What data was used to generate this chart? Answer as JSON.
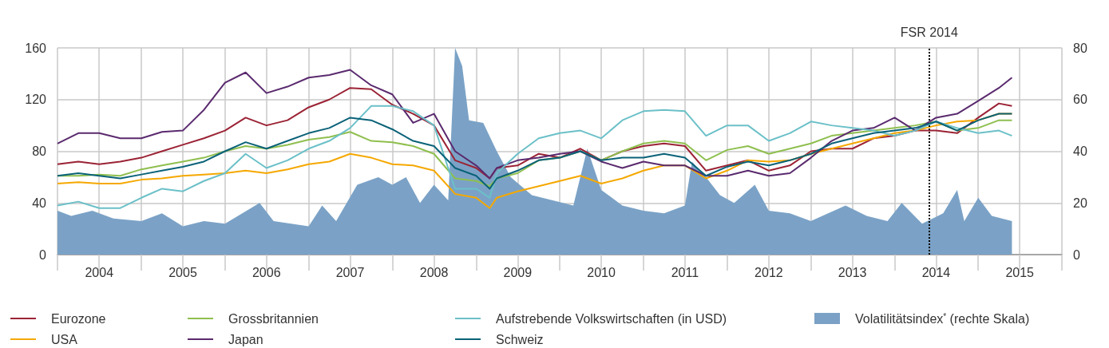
{
  "chart_data": {
    "type": "line",
    "x": [
      "2004-01",
      "2004-04",
      "2004-07",
      "2004-10",
      "2005-01",
      "2005-04",
      "2005-07",
      "2005-10",
      "2006-01",
      "2006-04",
      "2006-07",
      "2006-10",
      "2007-01",
      "2007-04",
      "2007-07",
      "2007-10",
      "2008-01",
      "2008-04",
      "2008-07",
      "2008-10",
      "2009-01",
      "2009-03",
      "2009-04",
      "2009-07",
      "2009-10",
      "2010-01",
      "2010-04",
      "2010-07",
      "2010-10",
      "2011-01",
      "2011-04",
      "2011-07",
      "2011-10",
      "2012-01",
      "2012-04",
      "2012-07",
      "2012-10",
      "2013-01",
      "2013-04",
      "2013-07",
      "2013-10",
      "2014-01",
      "2014-04",
      "2014-07",
      "2014-10",
      "2015-01",
      "2015-04",
      "2015-05-28"
    ],
    "series": [
      {
        "name": "Eurozone",
        "color": "#9b2335",
        "values": [
          70,
          72,
          70,
          72,
          75,
          80,
          85,
          90,
          96,
          106,
          100,
          104,
          114,
          120,
          129,
          128,
          116,
          109,
          100,
          73,
          67,
          59,
          67,
          69,
          78,
          75,
          82,
          73,
          80,
          84,
          86,
          84,
          65,
          69,
          73,
          65,
          69,
          80,
          82,
          82,
          90,
          92,
          96,
          96,
          94,
          106,
          117,
          115
        ]
      },
      {
        "name": "USA",
        "color": "#f5a800",
        "values": [
          55,
          56,
          55,
          55,
          58,
          59,
          61,
          62,
          63,
          65,
          63,
          66,
          70,
          72,
          78,
          75,
          70,
          69,
          65,
          47,
          44,
          36,
          44,
          49,
          53,
          57,
          61,
          55,
          59,
          65,
          69,
          69,
          59,
          65,
          73,
          72,
          73,
          78,
          82,
          86,
          90,
          94,
          96,
          100,
          103,
          104,
          109,
          109
        ]
      },
      {
        "name": "Grossbritannien",
        "color": "#8fbf4f",
        "values": [
          61,
          61,
          62,
          61,
          66,
          69,
          72,
          75,
          80,
          84,
          82,
          85,
          89,
          91,
          95,
          88,
          87,
          84,
          78,
          59,
          57,
          53,
          59,
          63,
          73,
          75,
          80,
          73,
          80,
          86,
          88,
          86,
          73,
          81,
          84,
          78,
          82,
          86,
          92,
          94,
          96,
          98,
          100,
          103,
          96,
          98,
          104,
          104
        ]
      },
      {
        "name": "Japan",
        "color": "#5a2a6e",
        "values": [
          86,
          94,
          94,
          90,
          90,
          95,
          96,
          112,
          133,
          141,
          125,
          130,
          137,
          139,
          143,
          131,
          124,
          102,
          109,
          80,
          69,
          59,
          67,
          73,
          75,
          78,
          80,
          72,
          67,
          72,
          69,
          69,
          61,
          61,
          65,
          61,
          63,
          75,
          88,
          96,
          98,
          106,
          96,
          106,
          109,
          119,
          129,
          137
        ]
      },
      {
        "name": "Aufstrebende Volkswirtschaften (in USD)",
        "color": "#6bc0c8",
        "values": [
          38,
          41,
          36,
          36,
          44,
          51,
          49,
          57,
          63,
          78,
          67,
          73,
          82,
          88,
          98,
          115,
          115,
          111,
          100,
          51,
          51,
          44,
          63,
          78,
          90,
          94,
          96,
          90,
          104,
          111,
          112,
          111,
          92,
          100,
          100,
          88,
          94,
          103,
          100,
          98,
          96,
          92,
          96,
          103,
          98,
          94,
          96,
          92
        ]
      },
      {
        "name": "Schweiz",
        "color": "#0a6278",
        "values": [
          61,
          63,
          61,
          59,
          62,
          65,
          68,
          72,
          80,
          87,
          82,
          88,
          94,
          98,
          106,
          104,
          97,
          88,
          84,
          67,
          61,
          51,
          59,
          65,
          73,
          75,
          80,
          73,
          75,
          75,
          78,
          75,
          61,
          68,
          72,
          69,
          73,
          78,
          86,
          90,
          94,
          96,
          98,
          103,
          96,
          104,
          109,
          109
        ]
      },
      {
        "name": "Volatilitätsindex$^{*}$ (rechte Skala)",
        "type": "area",
        "axis": "y2",
        "color": "#7ba2c6",
        "x": [
          "2004-01",
          "2004-03",
          "2004-06",
          "2004-09",
          "2005-01",
          "2005-04",
          "2005-07",
          "2005-10",
          "2006-01",
          "2006-06",
          "2006-08",
          "2007-01",
          "2007-03",
          "2007-05",
          "2007-08",
          "2007-11",
          "2008-01",
          "2008-03",
          "2008-05",
          "2008-07",
          "2008-09",
          "2008-10",
          "2008-11",
          "2008-12",
          "2009-02",
          "2009-04",
          "2009-06",
          "2009-09",
          "2009-12",
          "2010-03",
          "2010-05",
          "2010-07",
          "2010-10",
          "2011-01",
          "2011-04",
          "2011-07",
          "2011-08",
          "2011-10",
          "2011-12",
          "2012-02",
          "2012-05",
          "2012-07",
          "2012-10",
          "2013-01",
          "2013-06",
          "2013-09",
          "2013-12",
          "2014-02",
          "2014-05",
          "2014-08",
          "2014-10",
          "2014-11",
          "2015-01",
          "2015-03",
          "2015-05-28"
        ],
        "values": [
          17,
          15,
          17,
          14,
          13,
          16,
          11,
          13,
          12,
          20,
          13,
          11,
          19,
          13,
          27,
          30,
          27,
          30,
          20,
          27,
          21,
          80,
          73,
          52,
          51,
          40,
          30,
          23,
          21,
          19,
          41,
          25,
          19,
          17,
          16,
          19,
          36,
          30,
          23,
          20,
          27,
          17,
          16,
          13,
          19,
          15,
          13,
          20,
          12,
          16,
          25,
          13,
          22,
          15,
          13
        ]
      }
    ],
    "xlim": [
      "2004-01-01",
      "2016-01-01"
    ],
    "xticks": [
      {
        "value": "2004-01-01",
        "label": null
      },
      {
        "value": "2004-07-01",
        "label": "2004"
      },
      {
        "value": "2005-01-01",
        "label": null
      },
      {
        "value": "2005-07-01",
        "label": "2005"
      },
      {
        "value": "2006-01-01",
        "label": null
      },
      {
        "value": "2006-07-01",
        "label": "2006"
      },
      {
        "value": "2007-01-01",
        "label": null
      },
      {
        "value": "2007-07-01",
        "label": "2007"
      },
      {
        "value": "2008-01-01",
        "label": null
      },
      {
        "value": "2008-07-01",
        "label": "2008"
      },
      {
        "value": "2009-01-01",
        "label": null
      },
      {
        "value": "2009-07-01",
        "label": "2009"
      },
      {
        "value": "2010-01-01",
        "label": null
      },
      {
        "value": "2010-07-01",
        "label": "2010"
      },
      {
        "value": "2011-01-01",
        "label": null
      },
      {
        "value": "2011-07-01",
        "label": "2011"
      },
      {
        "value": "2012-01-01",
        "label": null
      },
      {
        "value": "2012-07-01",
        "label": "2012"
      },
      {
        "value": "2013-01-01",
        "label": null
      },
      {
        "value": "2013-07-01",
        "label": "2013"
      },
      {
        "value": "2014-01-01",
        "label": null
      },
      {
        "value": "2014-07-01",
        "label": "2014"
      },
      {
        "value": "2015-01-01",
        "label": null
      },
      {
        "value": "2015-07-01",
        "label": "2015"
      },
      {
        "value": "2016-01-01",
        "label": null
      }
    ],
    "ylim": [
      0,
      160
    ],
    "yticks": [
      0,
      40,
      80,
      120,
      160
    ],
    "y2lim": [
      0,
      80
    ],
    "y2ticks": [
      0,
      20,
      40,
      60,
      80
    ],
    "ref_lines": [
      {
        "axis": "x",
        "value": "2014-06",
        "label": "FSR 2014",
        "color": "#000000",
        "line_style": "dotted"
      }
    ],
    "grid": true,
    "legend": "bottom",
    "marker": "none"
  }
}
